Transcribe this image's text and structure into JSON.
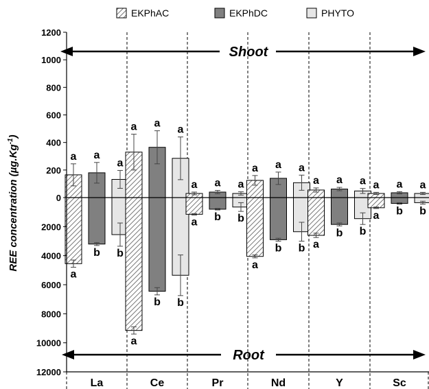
{
  "chart_data": {
    "type": "bar",
    "ylabel": "REE concentration (µg.Kg",
    "ylabel_sup": "-1",
    "ylabel_close": ")",
    "legend_placement": "top",
    "categories": [
      "La",
      "Ce",
      "Pr",
      "Nd",
      "Y",
      "Sc"
    ],
    "shoot_axis": {
      "label": "Shoot",
      "ylim": [
        0,
        1200
      ],
      "ticks": [
        "0",
        "200",
        "400",
        "600",
        "800",
        "1000",
        "1200"
      ]
    },
    "root_axis": {
      "label": "Root",
      "ylim": [
        0,
        12000
      ],
      "ticks": [
        "2000",
        "4000",
        "6000",
        "8000",
        "10000",
        "12000"
      ]
    },
    "series": [
      {
        "name": "EKPhAC",
        "color": "#e8e8e8",
        "pattern": "hatched",
        "shoot": [
          165,
          330,
          30,
          125,
          55,
          30
        ],
        "shoot_err": [
          80,
          130,
          10,
          35,
          15,
          8
        ],
        "root": [
          4550,
          9150,
          1150,
          4050,
          2600,
          700
        ],
        "root_err": [
          250,
          250,
          50,
          100,
          150,
          50
        ],
        "shoot_sig": [
          "a",
          "a",
          "a",
          "a",
          "a",
          "a"
        ],
        "root_sig": [
          "a",
          "a",
          "a",
          "a",
          "a",
          "a"
        ]
      },
      {
        "name": "EKPhDC",
        "color": "#808080",
        "pattern": "solid",
        "shoot": [
          180,
          365,
          40,
          140,
          62,
          35
        ],
        "shoot_err": [
          75,
          120,
          12,
          45,
          12,
          8
        ],
        "root": [
          3200,
          6450,
          800,
          2900,
          1850,
          400
        ],
        "root_err": [
          100,
          250,
          50,
          100,
          100,
          50
        ],
        "shoot_sig": [
          "a",
          "a",
          "a",
          "a",
          "a",
          "a"
        ],
        "root_sig": [
          "b",
          "b",
          "b",
          "b",
          "b",
          "b"
        ]
      },
      {
        "name": "PHYTO",
        "color": "#e6e6e6",
        "pattern": "solid",
        "shoot": [
          132,
          285,
          30,
          108,
          48,
          30
        ],
        "shoot_err": [
          65,
          155,
          12,
          55,
          18,
          8
        ],
        "root": [
          2550,
          5350,
          650,
          2350,
          1450,
          350
        ],
        "root_err": [
          800,
          1400,
          300,
          650,
          400,
          100
        ],
        "shoot_sig": [
          "a",
          "a",
          "a",
          "a",
          "a",
          "a"
        ],
        "root_sig": [
          "b",
          "b",
          "b",
          "b",
          "b",
          "b"
        ]
      }
    ]
  }
}
